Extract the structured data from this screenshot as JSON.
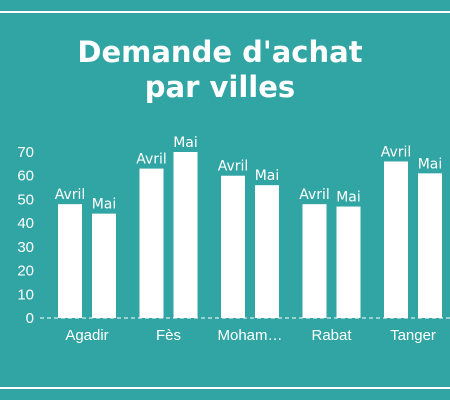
{
  "chart_data": {
    "type": "bar",
    "title_lines": [
      "Demande d'achat",
      "par villes"
    ],
    "categories": [
      "Agadir",
      "Fès",
      "Moham…",
      "Rabat",
      "Tanger"
    ],
    "series": [
      {
        "values": [
          48,
          63,
          60,
          48,
          66
        ],
        "labels": [
          "Avril",
          "Avril",
          "Avril",
          "Avril",
          "Avril"
        ]
      },
      {
        "values": [
          44,
          70,
          56,
          47,
          61
        ],
        "labels": [
          "Mai",
          "Mai",
          "Mai",
          "Mai",
          "Mai"
        ]
      }
    ],
    "yticks": [
      0,
      10,
      20,
      30,
      40,
      50,
      60,
      70
    ],
    "ylim": [
      0,
      70
    ],
    "grid": false,
    "legend": "none",
    "colors": {
      "background": "#31a5a4",
      "bar": "#ffffff",
      "text": "#ffffff"
    }
  }
}
